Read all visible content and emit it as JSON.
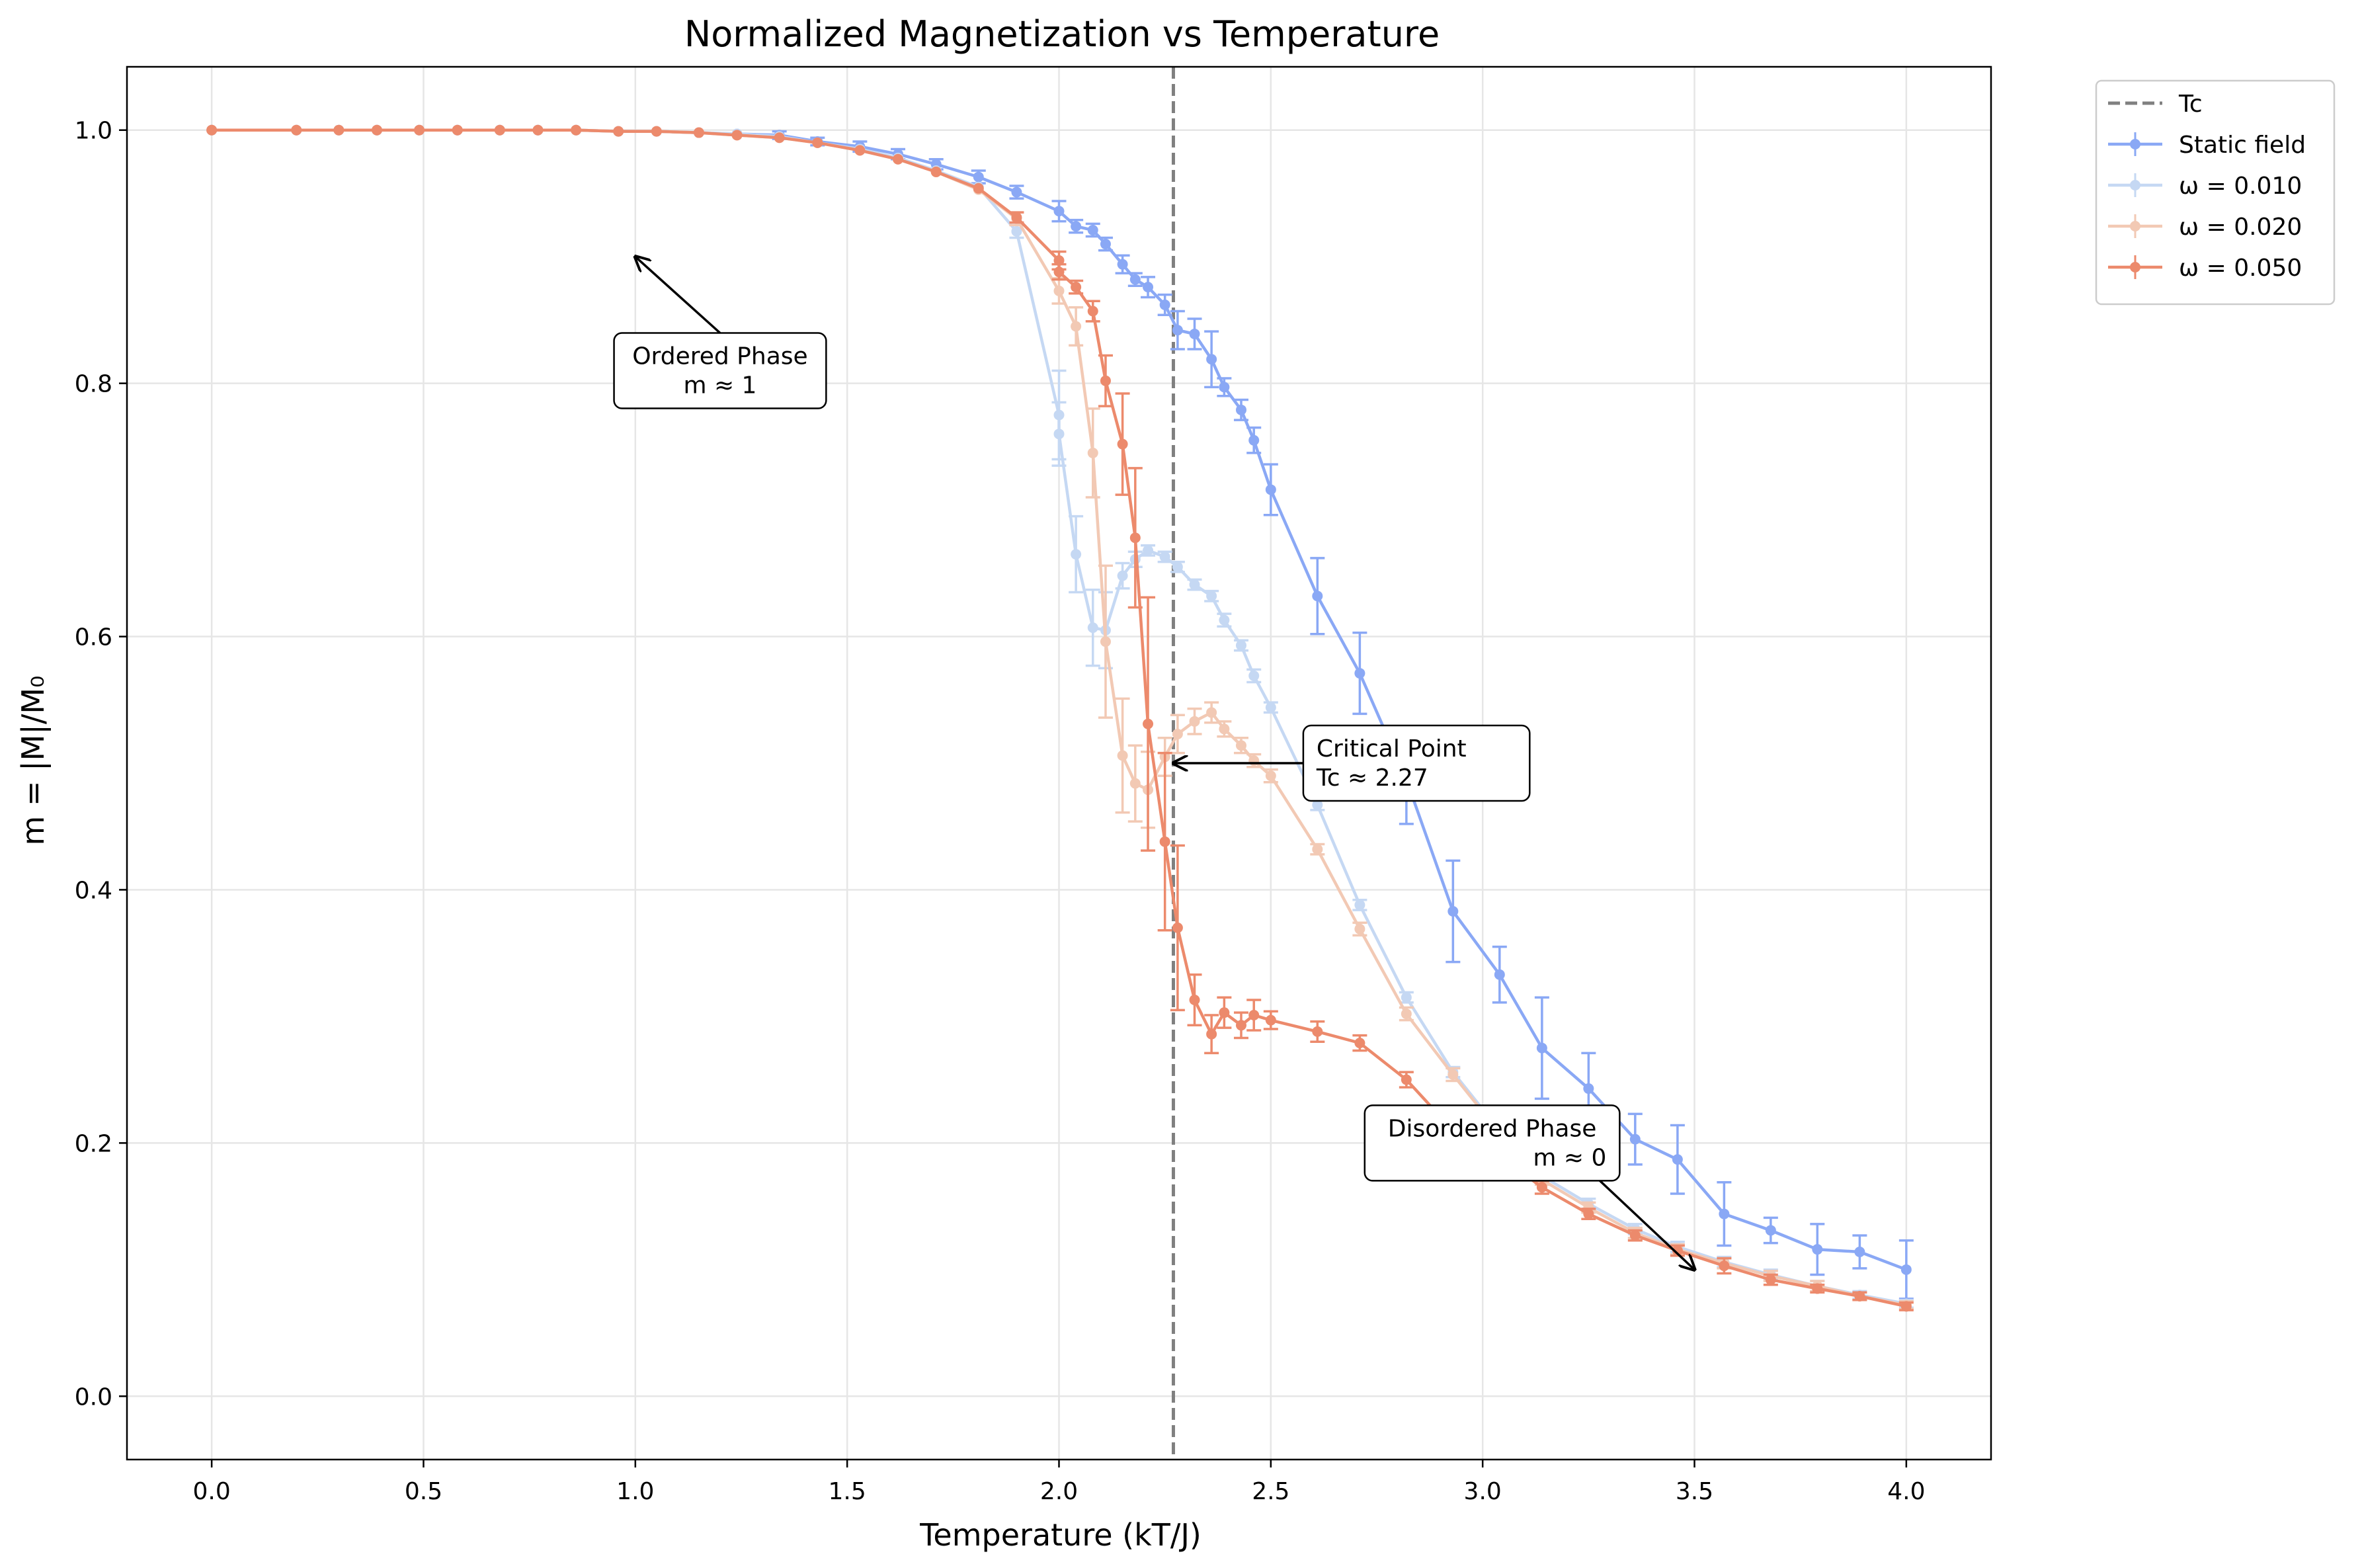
{
  "chart_data": {
    "type": "line",
    "title": "Normalized Magnetization vs Temperature",
    "xlabel": "Temperature (kT/J)",
    "ylabel": "m = |M|/M₀",
    "xlim": [
      -0.2,
      4.2
    ],
    "ylim": [
      -0.05,
      1.05
    ],
    "xticks": [
      0.0,
      0.5,
      1.0,
      1.5,
      2.0,
      2.5,
      3.0,
      3.5,
      4.0
    ],
    "xtick_labels": [
      "0.0",
      "0.5",
      "1.0",
      "1.5",
      "2.0",
      "2.5",
      "3.0",
      "3.5",
      "4.0"
    ],
    "yticks": [
      0.0,
      0.2,
      0.4,
      0.6,
      0.8,
      1.0
    ],
    "ytick_labels": [
      "0.0",
      "0.2",
      "0.4",
      "0.6",
      "0.8",
      "1.0"
    ],
    "grid": true,
    "legend_position": "outside-top-right",
    "tc_line": {
      "x": 2.27,
      "label": "Tc",
      "color": "#808080"
    },
    "series": [
      {
        "name": "Static field",
        "color": "#8aa8f5",
        "opacity": 1.0,
        "points": [
          [
            0.0,
            1.0,
            0
          ],
          [
            0.2,
            1.0,
            0
          ],
          [
            0.3,
            1.0,
            0
          ],
          [
            0.39,
            1.0,
            0
          ],
          [
            0.49,
            1.0,
            0
          ],
          [
            0.58,
            1.0,
            0
          ],
          [
            0.68,
            1.0,
            0
          ],
          [
            0.77,
            1.0,
            0
          ],
          [
            0.86,
            1.0,
            0
          ],
          [
            0.96,
            0.999,
            0
          ],
          [
            1.05,
            0.999,
            0
          ],
          [
            1.15,
            0.998,
            0
          ],
          [
            1.24,
            0.997,
            0
          ],
          [
            1.34,
            0.996,
            0.003
          ],
          [
            1.43,
            0.991,
            0.003
          ],
          [
            1.53,
            0.987,
            0.004
          ],
          [
            1.62,
            0.981,
            0.004
          ],
          [
            1.71,
            0.973,
            0.004
          ],
          [
            1.81,
            0.963,
            0.005
          ],
          [
            1.9,
            0.951,
            0.005
          ],
          [
            2.0,
            0.936,
            0.008
          ],
          [
            2.04,
            0.924,
            0.005
          ],
          [
            2.08,
            0.921,
            0.005
          ],
          [
            2.11,
            0.91,
            0.005
          ],
          [
            2.15,
            0.894,
            0.007
          ],
          [
            2.18,
            0.882,
            0.005
          ],
          [
            2.21,
            0.876,
            0.008
          ],
          [
            2.25,
            0.862,
            0.008
          ],
          [
            2.28,
            0.842,
            0.015
          ],
          [
            2.32,
            0.839,
            0.012
          ],
          [
            2.36,
            0.819,
            0.022
          ],
          [
            2.39,
            0.797,
            0.007
          ],
          [
            2.43,
            0.779,
            0.008
          ],
          [
            2.46,
            0.755,
            0.01
          ],
          [
            2.5,
            0.716,
            0.02
          ],
          [
            2.61,
            0.632,
            0.03
          ],
          [
            2.71,
            0.571,
            0.032
          ],
          [
            2.82,
            0.487,
            0.035
          ],
          [
            2.93,
            0.383,
            0.04
          ],
          [
            3.04,
            0.333,
            0.022
          ],
          [
            3.14,
            0.275,
            0.04
          ],
          [
            3.25,
            0.243,
            0.028
          ],
          [
            3.36,
            0.203,
            0.02
          ],
          [
            3.46,
            0.187,
            0.027
          ],
          [
            3.57,
            0.144,
            0.025
          ],
          [
            3.68,
            0.131,
            0.01
          ],
          [
            3.79,
            0.116,
            0.02
          ],
          [
            3.89,
            0.114,
            0.013
          ],
          [
            4.0,
            0.1,
            0.023
          ]
        ]
      },
      {
        "name": "ω = 0.010",
        "color": "#c5d8f3",
        "opacity": 1.0,
        "points": [
          [
            0.0,
            1.0,
            0
          ],
          [
            0.2,
            1.0,
            0
          ],
          [
            0.3,
            1.0,
            0
          ],
          [
            0.39,
            1.0,
            0
          ],
          [
            0.49,
            1.0,
            0
          ],
          [
            0.58,
            1.0,
            0
          ],
          [
            0.68,
            1.0,
            0
          ],
          [
            0.77,
            1.0,
            0
          ],
          [
            0.86,
            1.0,
            0
          ],
          [
            0.96,
            0.999,
            0
          ],
          [
            1.05,
            0.999,
            0
          ],
          [
            1.15,
            0.998,
            0
          ],
          [
            1.24,
            0.997,
            0
          ],
          [
            1.34,
            0.995,
            0
          ],
          [
            1.43,
            0.99,
            0
          ],
          [
            1.53,
            0.985,
            0
          ],
          [
            1.62,
            0.978,
            0
          ],
          [
            1.71,
            0.968,
            0
          ],
          [
            1.81,
            0.955,
            0
          ],
          [
            1.9,
            0.92,
            0.005
          ],
          [
            2.0,
            0.775,
            0.035
          ],
          [
            2.0,
            0.76,
            0.025
          ],
          [
            2.04,
            0.665,
            0.03
          ],
          [
            2.08,
            0.607,
            0.03
          ],
          [
            2.11,
            0.605,
            0.03
          ],
          [
            2.15,
            0.648,
            0.01
          ],
          [
            2.18,
            0.661,
            0.006
          ],
          [
            2.21,
            0.668,
            0.004
          ],
          [
            2.25,
            0.663,
            0.004
          ],
          [
            2.28,
            0.655,
            0.004
          ],
          [
            2.32,
            0.641,
            0.004
          ],
          [
            2.36,
            0.632,
            0.004
          ],
          [
            2.39,
            0.613,
            0.005
          ],
          [
            2.43,
            0.593,
            0.004
          ],
          [
            2.46,
            0.569,
            0.005
          ],
          [
            2.5,
            0.544,
            0.004
          ],
          [
            2.61,
            0.467,
            0.004
          ],
          [
            2.71,
            0.388,
            0.004
          ],
          [
            2.82,
            0.315,
            0.004
          ],
          [
            2.93,
            0.256,
            0.004
          ],
          [
            3.04,
            0.21,
            0.004
          ],
          [
            3.14,
            0.174,
            0.004
          ],
          [
            3.25,
            0.152,
            0.004
          ],
          [
            3.36,
            0.132,
            0.004
          ],
          [
            3.46,
            0.118,
            0.004
          ],
          [
            3.57,
            0.106,
            0.004
          ],
          [
            3.68,
            0.096,
            0.004
          ],
          [
            3.79,
            0.087,
            0.004
          ],
          [
            3.89,
            0.08,
            0.003
          ],
          [
            4.0,
            0.073,
            0.003
          ]
        ]
      },
      {
        "name": "ω = 0.020",
        "color": "#f2c9b4",
        "opacity": 1.0,
        "points": [
          [
            0.0,
            1.0,
            0
          ],
          [
            0.2,
            1.0,
            0
          ],
          [
            0.3,
            1.0,
            0
          ],
          [
            0.39,
            1.0,
            0
          ],
          [
            0.49,
            1.0,
            0
          ],
          [
            0.58,
            1.0,
            0
          ],
          [
            0.68,
            1.0,
            0
          ],
          [
            0.77,
            1.0,
            0
          ],
          [
            0.86,
            1.0,
            0
          ],
          [
            0.96,
            0.999,
            0
          ],
          [
            1.05,
            0.999,
            0
          ],
          [
            1.15,
            0.998,
            0
          ],
          [
            1.24,
            0.996,
            0
          ],
          [
            1.34,
            0.994,
            0
          ],
          [
            1.43,
            0.99,
            0
          ],
          [
            1.53,
            0.984,
            0
          ],
          [
            1.62,
            0.977,
            0
          ],
          [
            1.71,
            0.967,
            0
          ],
          [
            1.81,
            0.953,
            0
          ],
          [
            1.9,
            0.93,
            0.005
          ],
          [
            2.0,
            0.873,
            0.01
          ],
          [
            2.04,
            0.845,
            0.015
          ],
          [
            2.08,
            0.745,
            0.035
          ],
          [
            2.11,
            0.596,
            0.06
          ],
          [
            2.15,
            0.506,
            0.045
          ],
          [
            2.18,
            0.484,
            0.03
          ],
          [
            2.21,
            0.479,
            0.03
          ],
          [
            2.25,
            0.505,
            0.015
          ],
          [
            2.28,
            0.523,
            0.015
          ],
          [
            2.32,
            0.533,
            0.01
          ],
          [
            2.36,
            0.54,
            0.008
          ],
          [
            2.39,
            0.527,
            0.006
          ],
          [
            2.43,
            0.514,
            0.006
          ],
          [
            2.46,
            0.502,
            0.005
          ],
          [
            2.5,
            0.49,
            0.005
          ],
          [
            2.61,
            0.432,
            0.004
          ],
          [
            2.71,
            0.369,
            0.005
          ],
          [
            2.82,
            0.302,
            0.005
          ],
          [
            2.93,
            0.254,
            0.005
          ],
          [
            3.04,
            0.208,
            0.004
          ],
          [
            3.14,
            0.171,
            0.004
          ],
          [
            3.25,
            0.149,
            0.004
          ],
          [
            3.36,
            0.129,
            0.004
          ],
          [
            3.46,
            0.116,
            0.004
          ],
          [
            3.57,
            0.105,
            0.004
          ],
          [
            3.68,
            0.095,
            0.004
          ],
          [
            3.79,
            0.087,
            0.004
          ],
          [
            3.89,
            0.079,
            0.003
          ],
          [
            4.0,
            0.072,
            0.003
          ]
        ]
      },
      {
        "name": "ω = 0.050",
        "color": "#ec8a6c",
        "opacity": 1.0,
        "points": [
          [
            0.0,
            1.0,
            0
          ],
          [
            0.2,
            1.0,
            0
          ],
          [
            0.3,
            1.0,
            0
          ],
          [
            0.39,
            1.0,
            0
          ],
          [
            0.49,
            1.0,
            0
          ],
          [
            0.58,
            1.0,
            0
          ],
          [
            0.68,
            1.0,
            0
          ],
          [
            0.77,
            1.0,
            0
          ],
          [
            0.86,
            1.0,
            0
          ],
          [
            0.96,
            0.999,
            0
          ],
          [
            1.05,
            0.999,
            0
          ],
          [
            1.15,
            0.998,
            0
          ],
          [
            1.24,
            0.996,
            0
          ],
          [
            1.34,
            0.994,
            0
          ],
          [
            1.43,
            0.99,
            0
          ],
          [
            1.53,
            0.984,
            0
          ],
          [
            1.62,
            0.977,
            0
          ],
          [
            1.71,
            0.967,
            0
          ],
          [
            1.81,
            0.954,
            0
          ],
          [
            1.9,
            0.931,
            0.004
          ],
          [
            2.0,
            0.897,
            0.007
          ],
          [
            2.0,
            0.888,
            0.006
          ],
          [
            2.04,
            0.876,
            0.005
          ],
          [
            2.08,
            0.857,
            0.008
          ],
          [
            2.11,
            0.802,
            0.02
          ],
          [
            2.15,
            0.752,
            0.04
          ],
          [
            2.18,
            0.678,
            0.055
          ],
          [
            2.21,
            0.531,
            0.1
          ],
          [
            2.25,
            0.438,
            0.07
          ],
          [
            2.28,
            0.37,
            0.065
          ],
          [
            2.32,
            0.313,
            0.02
          ],
          [
            2.36,
            0.286,
            0.015
          ],
          [
            2.39,
            0.303,
            0.012
          ],
          [
            2.43,
            0.293,
            0.01
          ],
          [
            2.46,
            0.301,
            0.012
          ],
          [
            2.5,
            0.297,
            0.007
          ],
          [
            2.61,
            0.288,
            0.008
          ],
          [
            2.71,
            0.279,
            0.006
          ],
          [
            2.82,
            0.25,
            0.006
          ],
          [
            2.93,
            0.21,
            0.005
          ],
          [
            3.04,
            0.19,
            0.005
          ],
          [
            3.14,
            0.165,
            0.005
          ],
          [
            3.25,
            0.144,
            0.004
          ],
          [
            3.36,
            0.127,
            0.004
          ],
          [
            3.46,
            0.115,
            0.004
          ],
          [
            3.57,
            0.103,
            0.006
          ],
          [
            3.68,
            0.092,
            0.004
          ],
          [
            3.79,
            0.085,
            0.003
          ],
          [
            3.89,
            0.079,
            0.003
          ],
          [
            4.0,
            0.071,
            0.003
          ]
        ]
      }
    ],
    "annotations": [
      {
        "text": [
          "Ordered Phase",
          "m ≈ 1"
        ],
        "box_at": [
          1.2,
          0.81
        ],
        "arrow_to": [
          1.0,
          0.9
        ],
        "align": "center"
      },
      {
        "text": [
          "Critical Point",
          "Tc ≈ 2.27"
        ],
        "box_at": [
          2.6,
          0.5
        ],
        "arrow_to": [
          2.27,
          0.5
        ],
        "align": "left"
      },
      {
        "text": [
          "Disordered Phase",
          "m ≈ 0"
        ],
        "box_at": [
          3.3,
          0.2
        ],
        "arrow_to": [
          3.5,
          0.1
        ],
        "align": "right"
      }
    ],
    "legend": [
      {
        "label": "Tc",
        "kind": "dashed",
        "color": "#808080"
      },
      {
        "label": "Static field",
        "kind": "marker",
        "color": "#8aa8f5"
      },
      {
        "label": "ω = 0.010",
        "kind": "marker",
        "color": "#c5d8f3"
      },
      {
        "label": "ω = 0.020",
        "kind": "marker",
        "color": "#f2c9b4"
      },
      {
        "label": "ω = 0.050",
        "kind": "marker",
        "color": "#ec8a6c"
      }
    ]
  }
}
